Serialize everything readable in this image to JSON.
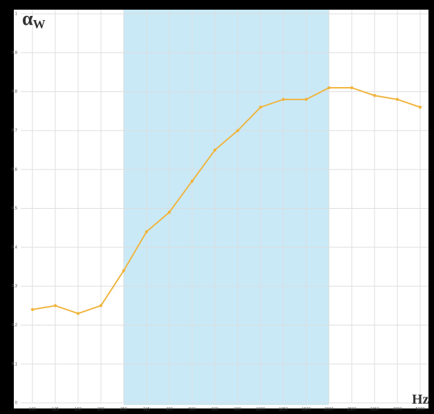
{
  "chart_data": {
    "type": "line",
    "ylabel": "α",
    "ylabel_sub": "W",
    "xlabel": "Hz",
    "categories": [
      "100",
      "125",
      "160",
      "200",
      "250",
      "315",
      "400",
      "500",
      "630",
      "800",
      "1000",
      "1250",
      "1600",
      "2000",
      "2500",
      "3150",
      "4000",
      "5000"
    ],
    "values": [
      0.24,
      0.25,
      0.23,
      0.25,
      0.34,
      0.44,
      0.49,
      0.57,
      0.65,
      0.7,
      0.76,
      0.78,
      0.78,
      0.81,
      0.81,
      0.79,
      0.78,
      0.76
    ],
    "color": "#f0b43c",
    "highlight": [
      "250",
      "2000"
    ],
    "highlight_color": "#c9e9f7",
    "ylim": [
      0,
      1
    ],
    "yticks": [
      0,
      {
        "value": 0.1,
        "label": "0,1"
      },
      {
        "value": 0.2,
        "label": "0,2"
      },
      {
        "value": 0.3,
        "label": "0,3"
      },
      {
        "value": 0.4,
        "label": "0,4"
      },
      {
        "value": 0.5,
        "label": "0,5"
      },
      {
        "value": 0.6,
        "label": "0,6"
      },
      {
        "value": 0.7,
        "label": "0,7"
      },
      {
        "value": 0.8,
        "label": "0,8"
      },
      {
        "value": 0.9,
        "label": "0,9"
      },
      1
    ],
    "grid": true
  }
}
